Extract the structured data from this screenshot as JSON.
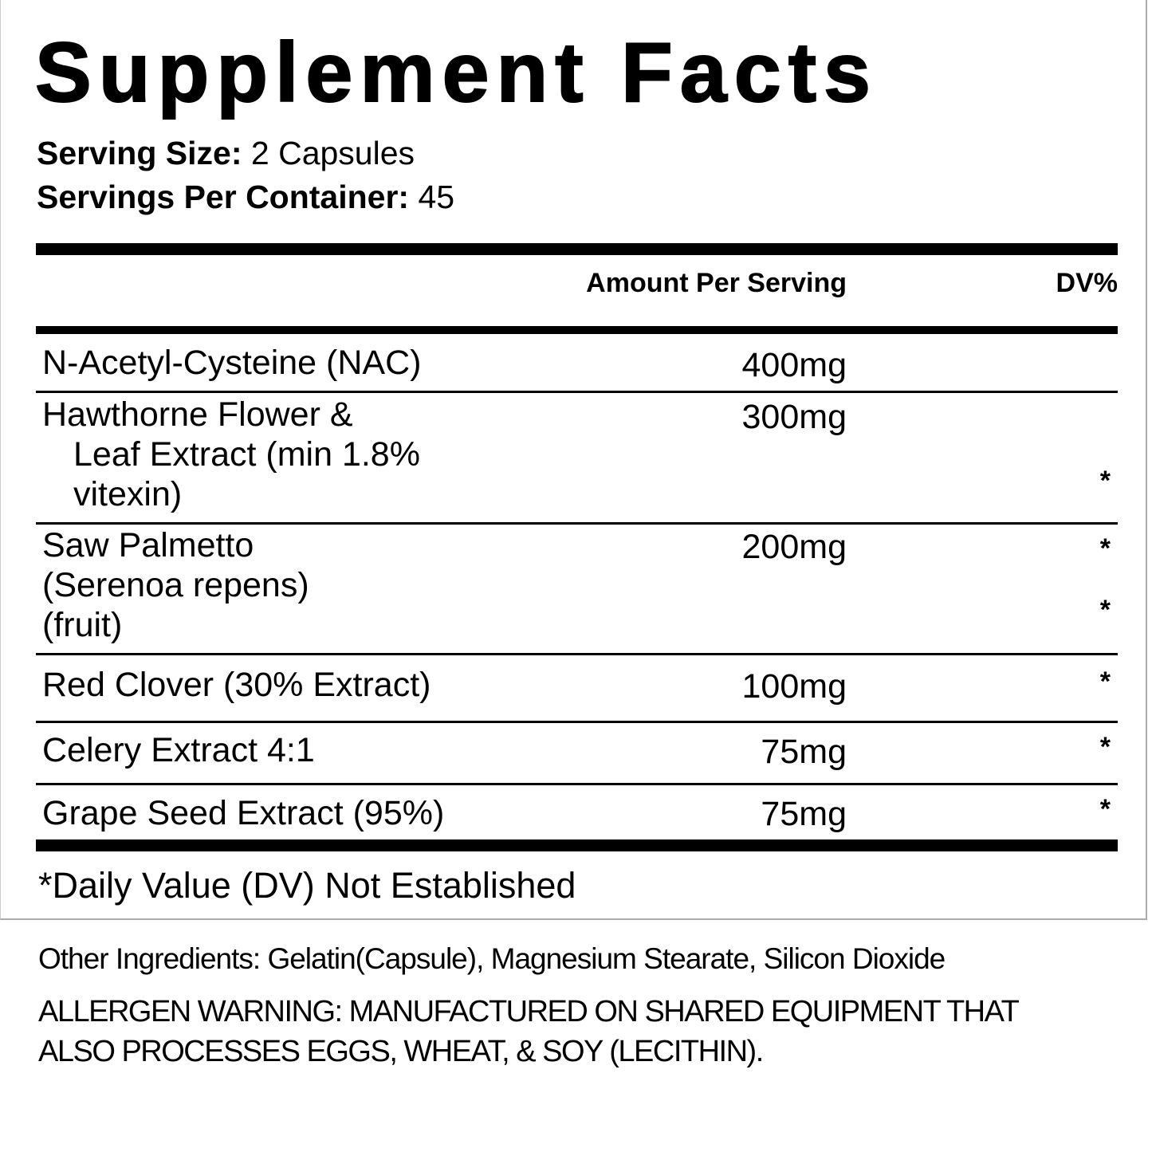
{
  "title": "Supplement Facts",
  "serving_size": {
    "label": "Serving Size:",
    "value": "2 Capsules"
  },
  "servings_per_container": {
    "label": "Servings Per Container:",
    "value": "45"
  },
  "header": {
    "amount": "Amount Per Serving",
    "dv": "DV%"
  },
  "ingredients": [
    {
      "name_lines": [
        "N-Acetyl-Cysteine (NAC)"
      ],
      "amount": "400mg",
      "dv": ""
    },
    {
      "name_lines": [
        "Hawthorne Flower &",
        "Leaf Extract (min 1.8%",
        "vitexin)"
      ],
      "amount": "300mg",
      "dv": "*"
    },
    {
      "name_lines": [
        "Saw Palmetto",
        "(Serenoa repens)",
        "(fruit)"
      ],
      "amount": "200mg",
      "dv": "*",
      "dv2": "*"
    },
    {
      "name_lines": [
        "Red Clover (30% Extract)"
      ],
      "amount": "100mg",
      "dv": "*"
    },
    {
      "name_lines": [
        "Celery Extract 4:1"
      ],
      "amount": "75mg",
      "dv": "*"
    },
    {
      "name_lines": [
        "Grape Seed Extract (95%)"
      ],
      "amount": "75mg",
      "dv": "*"
    }
  ],
  "footnote": "*Daily Value (DV) Not Established",
  "other_ingredients": "Other Ingredients: Gelatin(Capsule), Magnesium Stearate, Silicon Dioxide",
  "allergen_warning_lines": [
    "ALLERGEN WARNING:  MANUFACTURED ON SHARED EQUIPMENT THAT",
    "ALSO PROCESSES EGGS, WHEAT, & SOY (LECITHIN)."
  ]
}
